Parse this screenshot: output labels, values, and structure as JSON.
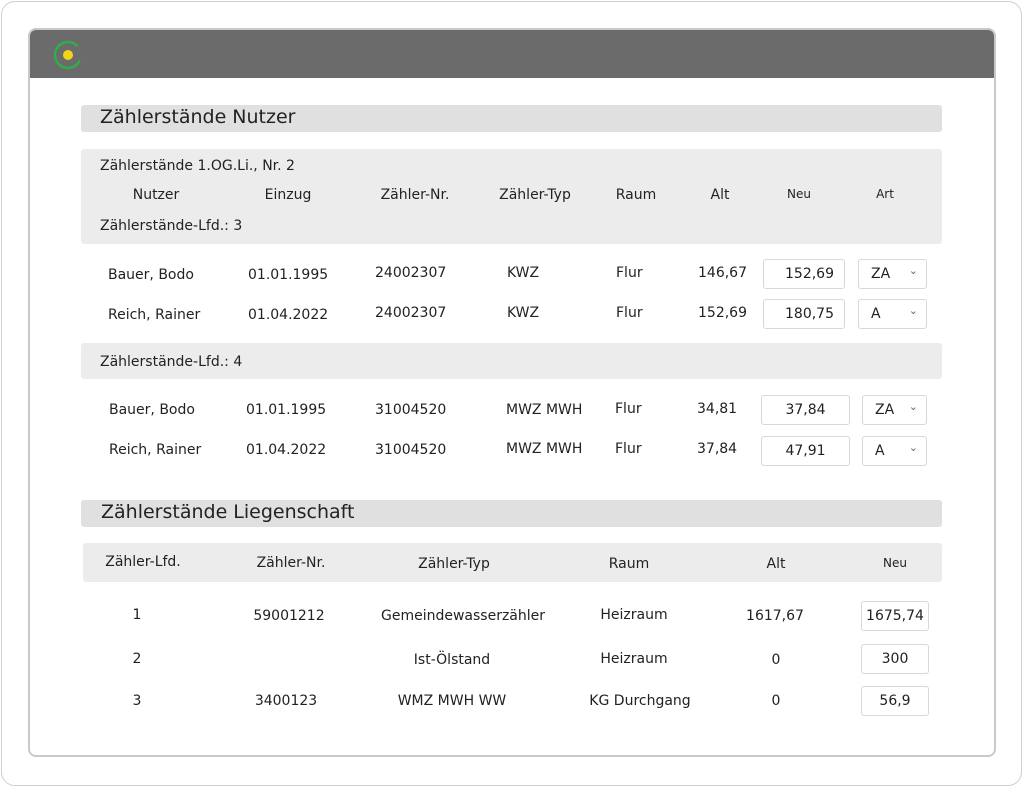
{
  "nutzer": {
    "title": "Zählerstände Nutzer",
    "unit_title": "Zählerstände 1.OG.Li., Nr. 2",
    "headers": {
      "nutzer": "Nutzer",
      "einzug": "Einzug",
      "zaehler_nr": "Zähler-Nr.",
      "zaehler_typ": "Zähler-Typ",
      "raum": "Raum",
      "alt": "Alt",
      "neu": "Neu",
      "art": "Art"
    },
    "groups": [
      {
        "label": "Zählerstände-Lfd.: 3",
        "rows": [
          {
            "nutzer": "Bauer, Bodo",
            "einzug": "01.01.1995",
            "zaehler_nr": "24002307",
            "typ": "KWZ",
            "raum": "Flur",
            "alt": "146,67",
            "neu": "152,69",
            "art": "ZA"
          },
          {
            "nutzer": "Reich, Rainer",
            "einzug": "01.04.2022",
            "zaehler_nr": "24002307",
            "typ": "KWZ",
            "raum": "Flur",
            "alt": "152,69",
            "neu": "180,75",
            "art": "A"
          }
        ]
      },
      {
        "label": "Zählerstände-Lfd.: 4",
        "rows": [
          {
            "nutzer": "Bauer, Bodo",
            "einzug": "01.01.1995",
            "zaehler_nr": "31004520",
            "typ": "MWZ MWH",
            "raum": "Flur",
            "alt": "34,81",
            "neu": "37,84",
            "art": "ZA"
          },
          {
            "nutzer": "Reich, Rainer",
            "einzug": "01.04.2022",
            "zaehler_nr": "31004520",
            "typ": "MWZ MWH",
            "raum": "Flur",
            "alt": "37,84",
            "neu": "47,91",
            "art": "A"
          }
        ]
      }
    ]
  },
  "liegenschaft": {
    "title": "Zählerstände Liegenschaft",
    "headers": {
      "lfd": "Zähler-Lfd.",
      "zaehler_nr": "Zähler-Nr.",
      "zaehler_typ": "Zähler-Typ",
      "raum": "Raum",
      "alt": "Alt",
      "neu": "Neu"
    },
    "rows": [
      {
        "lfd": "1",
        "zaehler_nr": "59001212",
        "typ": "Gemeindewasserzähler",
        "raum": "Heizraum",
        "alt": "1617,67",
        "neu": "1675,74"
      },
      {
        "lfd": "2",
        "zaehler_nr": "",
        "typ": "Ist-Ölstand",
        "raum": "Heizraum",
        "alt": "0",
        "neu": "300"
      },
      {
        "lfd": "3",
        "zaehler_nr": "3400123",
        "typ": "WMZ MWH WW",
        "raum": "KG Durchgang",
        "alt": "0",
        "neu": "56,9"
      }
    ]
  },
  "icons": {
    "logo": "app-logo-icon",
    "select_chevron": "chevron-down-icon"
  },
  "colors": {
    "titlebar": "#6b6b6b",
    "logo_ring": "#2fae4a",
    "logo_dot": "#f2d21b",
    "section_bar": "#e0e0e0"
  }
}
